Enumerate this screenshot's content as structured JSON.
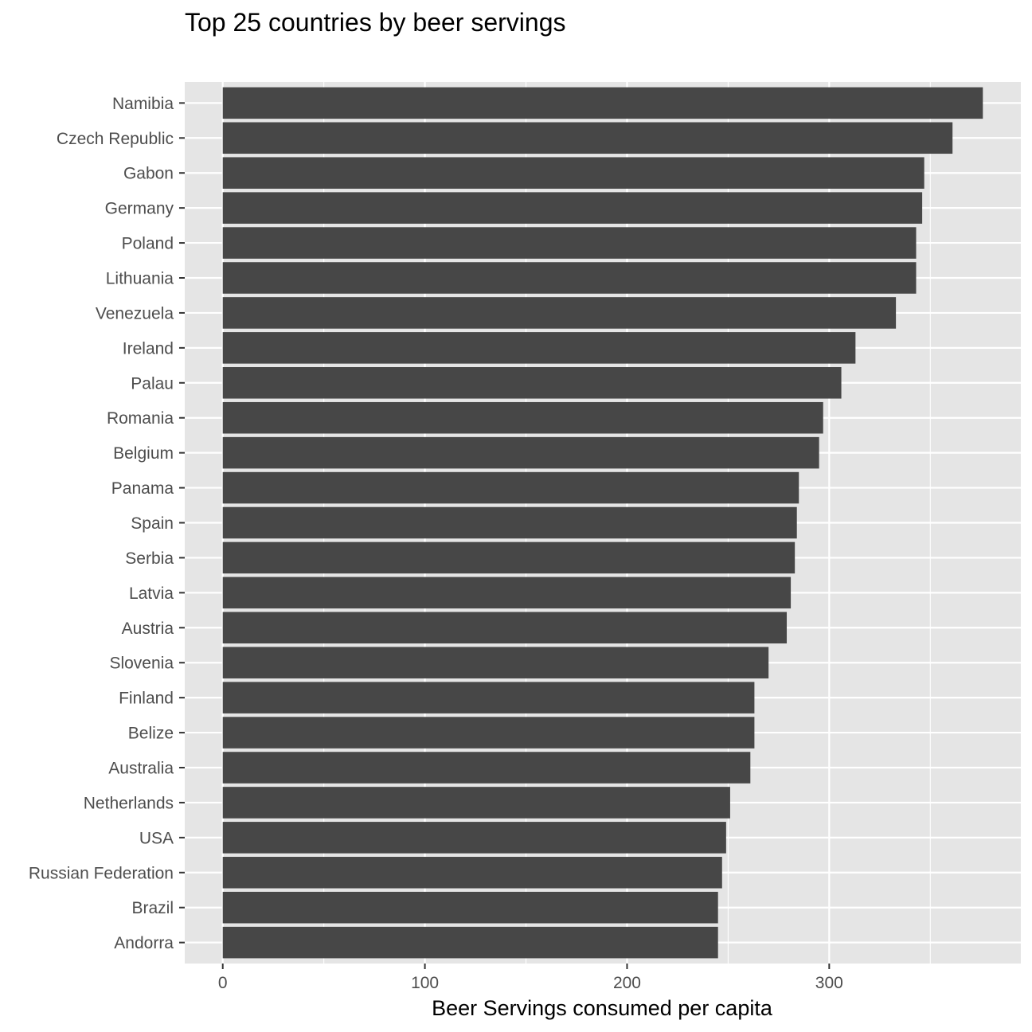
{
  "chart_data": {
    "type": "bar",
    "orientation": "horizontal",
    "title": "Top 25 countries by beer servings",
    "xlabel": "Beer Servings consumed per capita",
    "ylabel": "",
    "categories": [
      "Namibia",
      "Czech Republic",
      "Gabon",
      "Germany",
      "Poland",
      "Lithuania",
      "Venezuela",
      "Ireland",
      "Palau",
      "Romania",
      "Belgium",
      "Panama",
      "Spain",
      "Serbia",
      "Latvia",
      "Austria",
      "Slovenia",
      "Finland",
      "Belize",
      "Australia",
      "Netherlands",
      "USA",
      "Russian Federation",
      "Brazil",
      "Andorra"
    ],
    "values": [
      376,
      361,
      347,
      346,
      343,
      343,
      333,
      313,
      306,
      297,
      295,
      285,
      284,
      283,
      281,
      279,
      270,
      263,
      263,
      261,
      251,
      249,
      247,
      245,
      245
    ],
    "xlim": [
      -18.8,
      394.8
    ],
    "xticks": [
      "0",
      "100",
      "200",
      "300"
    ],
    "grid": true,
    "legend": "none",
    "colors": {
      "bar": "#474747",
      "panel": "#e5e5e5",
      "grid": "#ffffff",
      "tick_text": "#4d4d4d",
      "tick_mark": "#333333"
    }
  }
}
